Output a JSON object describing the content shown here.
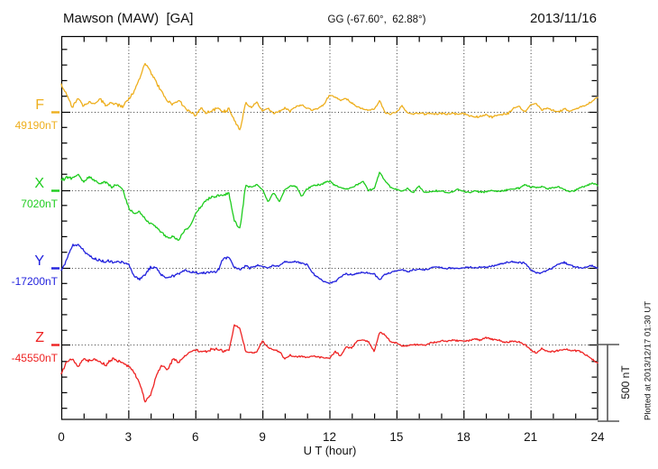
{
  "header": {
    "station": "Mawson (MAW)  [GA]",
    "geographic": "GG (-67.60°,  62.88°)",
    "date": "2013/11/16"
  },
  "x_axis": {
    "label": "U T (hour)",
    "ticks": [
      0,
      3,
      6,
      9,
      12,
      15,
      18,
      21,
      24
    ],
    "minor_step_hours": 1,
    "range_hours": [
      0,
      24
    ]
  },
  "y_axis": {
    "minor_tick_nT": 100,
    "division_per_baseline_nT": 500
  },
  "scale_bar": {
    "label": "500 nT",
    "nT": 500
  },
  "plot_note": "Plotted at 2013/12/17 01:30 UT",
  "chart_data": {
    "type": "line",
    "title": "Mawson (MAW) [GA] magnetogram 2013/11/16",
    "x_unit": "UT hour",
    "x_start": 0,
    "x_step_hours": 0.25,
    "x_end": 24,
    "grid": "dotted vertical lines every 3 hours; dotted horizontal baseline per component",
    "legend_position": "left baseline labels",
    "series": [
      {
        "component": "F",
        "baseline_label": "49190nT",
        "baseline_nT": 49190,
        "color": "#eeaf1e",
        "offsets_nT": [
          170,
          115,
          30,
          90,
          40,
          65,
          50,
          85,
          40,
          60,
          45,
          35,
          80,
          130,
          215,
          315,
          260,
          190,
          130,
          70,
          50,
          80,
          30,
          0,
          -20,
          25,
          -10,
          5,
          25,
          0,
          15,
          -60,
          -120,
          60,
          25,
          65,
          5,
          25,
          -10,
          5,
          25,
          5,
          35,
          45,
          25,
          10,
          25,
          45,
          110,
          100,
          75,
          85,
          55,
          35,
          20,
          10,
          20,
          70,
          -5,
          -15,
          0,
          40,
          -10,
          -15,
          -5,
          -15,
          -10,
          -15,
          -10,
          -15,
          -10,
          -15,
          -10,
          -25,
          -35,
          -30,
          -20,
          -35,
          -20,
          -15,
          -10,
          25,
          35,
          0,
          45,
          55,
          10,
          25,
          10,
          0,
          20,
          5,
          15,
          30,
          45,
          70,
          95
        ]
      },
      {
        "component": "X",
        "baseline_label": "7020nT",
        "baseline_nT": 7020,
        "color": "#1ecc1e",
        "offsets_nT": [
          65,
          85,
          75,
          105,
          55,
          90,
          60,
          40,
          55,
          20,
          35,
          0,
          -110,
          -150,
          -140,
          -185,
          -215,
          -245,
          -275,
          -310,
          -300,
          -330,
          -265,
          -240,
          -155,
          -105,
          -65,
          -45,
          -35,
          -30,
          -20,
          -200,
          -250,
          35,
          20,
          35,
          5,
          -75,
          -15,
          -75,
          0,
          30,
          25,
          -40,
          10,
          30,
          35,
          45,
          60,
          30,
          20,
          5,
          20,
          35,
          55,
          0,
          10,
          120,
          60,
          20,
          5,
          -5,
          15,
          -15,
          25,
          -10,
          -10,
          -5,
          -5,
          -15,
          -10,
          10,
          -5,
          -15,
          -5,
          -10,
          -10,
          0,
          -5,
          -5,
          5,
          10,
          15,
          40,
          20,
          20,
          25,
          10,
          15,
          25,
          5,
          -10,
          0,
          20,
          30,
          45,
          35
        ]
      },
      {
        "component": "Y",
        "baseline_label": "-17200nT",
        "baseline_nT": -17200,
        "color": "#2222dd",
        "offsets_nT": [
          -20,
          60,
          145,
          155,
          110,
          80,
          60,
          50,
          40,
          45,
          35,
          35,
          25,
          -50,
          -75,
          -45,
          5,
          0,
          -45,
          -65,
          -55,
          -35,
          -15,
          -30,
          -30,
          -35,
          -30,
          -25,
          -20,
          60,
          65,
          0,
          -10,
          10,
          0,
          15,
          10,
          0,
          15,
          10,
          40,
          35,
          40,
          30,
          20,
          -35,
          -65,
          -90,
          -100,
          -90,
          -55,
          -40,
          -45,
          -35,
          -30,
          -35,
          -40,
          -75,
          -40,
          -30,
          -20,
          -10,
          -25,
          -10,
          -10,
          -15,
          -5,
          10,
          0,
          -5,
          0,
          -5,
          0,
          5,
          0,
          5,
          5,
          10,
          20,
          30,
          35,
          40,
          35,
          30,
          -10,
          -30,
          -35,
          -15,
          0,
          25,
          35,
          20,
          5,
          0,
          5,
          15,
          -5
        ]
      },
      {
        "component": "Z",
        "baseline_label": "-45550nT",
        "baseline_nT": -45550,
        "color": "#ee2222",
        "offsets_nT": [
          -195,
          -110,
          -95,
          -150,
          -95,
          -105,
          -90,
          -120,
          -135,
          -95,
          -105,
          -120,
          -140,
          -175,
          -255,
          -370,
          -330,
          -205,
          -130,
          -165,
          -95,
          -120,
          -75,
          -50,
          -35,
          -45,
          -45,
          -30,
          -30,
          -40,
          -35,
          130,
          100,
          -45,
          -55,
          -50,
          25,
          -20,
          -35,
          -45,
          -95,
          -70,
          -80,
          -75,
          -85,
          -75,
          -80,
          -85,
          -90,
          -45,
          -75,
          -15,
          -20,
          25,
          30,
          15,
          -45,
          85,
          60,
          15,
          10,
          -10,
          -10,
          0,
          0,
          -5,
          10,
          15,
          25,
          20,
          30,
          25,
          25,
          25,
          35,
          30,
          45,
          35,
          30,
          20,
          15,
          25,
          15,
          0,
          -35,
          -55,
          -25,
          -45,
          -45,
          -40,
          -30,
          -35,
          -40,
          -45,
          -70,
          -95,
          -120
        ]
      }
    ]
  }
}
